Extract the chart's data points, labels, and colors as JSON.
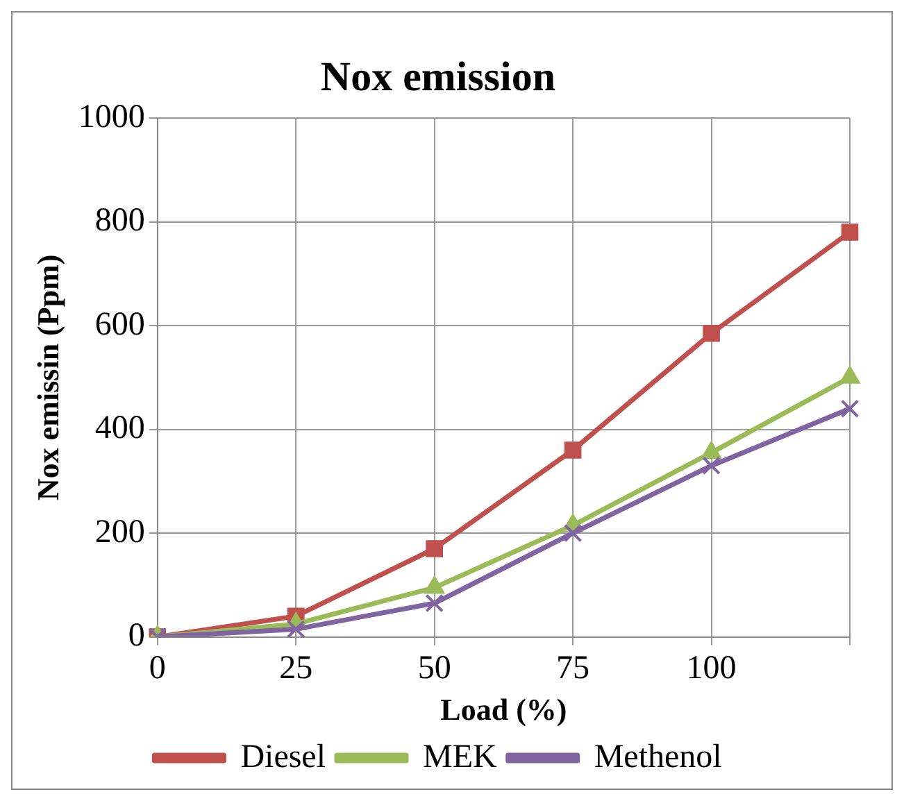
{
  "chart_data": {
    "type": "line",
    "title": "Nox emission",
    "xlabel": "Load (%)",
    "ylabel": "Nox emissin (Ppm)",
    "categories": [
      "0",
      "25",
      "50",
      "75",
      "100",
      null
    ],
    "series": [
      {
        "name": "Diesel",
        "color": "#c0504d",
        "marker": "square",
        "values": [
          0,
          40,
          170,
          360,
          585,
          780
        ]
      },
      {
        "name": "MEK",
        "color": "#9bbb59",
        "marker": "triangle",
        "values": [
          0,
          25,
          95,
          215,
          355,
          500
        ]
      },
      {
        "name": "Methenol",
        "color": "#8064a2",
        "marker": "cross",
        "values": [
          0,
          15,
          65,
          200,
          330,
          440
        ]
      }
    ],
    "ylim": [
      0,
      1000
    ],
    "yticks": [
      0,
      200,
      400,
      600,
      800,
      1000
    ],
    "grid": true,
    "legend": "bottom",
    "line_style": "solid"
  }
}
